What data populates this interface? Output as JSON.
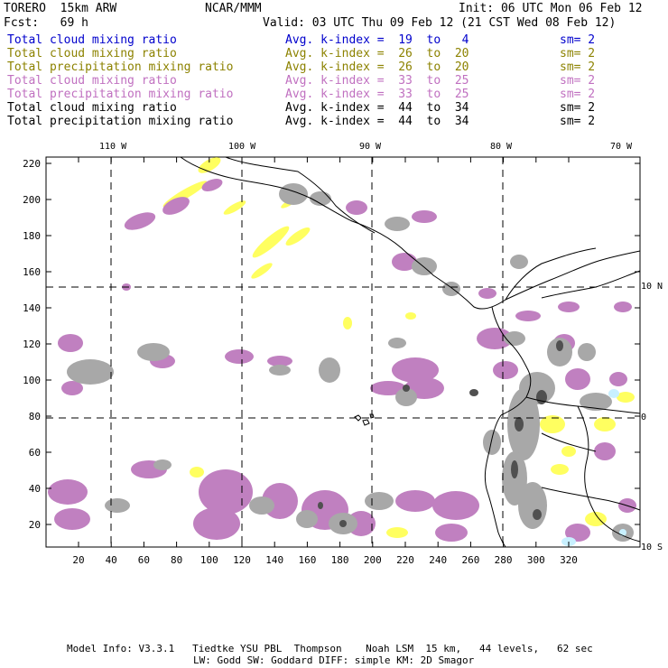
{
  "header": {
    "model": "TORERO  15km ARW",
    "org": "NCAR/MMM",
    "init": "Init: 06 UTC Mon 06 Feb 12",
    "fcst": "Fcst:   69 h",
    "valid": "Valid: 03 UTC Thu 09 Feb 12 (21 CST Wed 08 Feb 12)"
  },
  "legend": [
    {
      "field": "Total cloud mixing ratio",
      "range": "Avg. k-index =  19  to   4",
      "sm": "sm= 2",
      "color": "#0000cc"
    },
    {
      "field": "Total cloud mixing ratio",
      "range": "Avg. k-index =  26  to  20",
      "sm": "sm= 2",
      "color": "#8c8200"
    },
    {
      "field": "Total precipitation mixing ratio",
      "range": "Avg. k-index =  26  to  20",
      "sm": "sm= 2",
      "color": "#8c8200"
    },
    {
      "field": "Total cloud mixing ratio",
      "range": "Avg. k-index =  33  to  25",
      "sm": "sm= 2",
      "color": "#c070c0"
    },
    {
      "field": "Total precipitation mixing ratio",
      "range": "Avg. k-index =  33  to  25",
      "sm": "sm= 2",
      "color": "#c070c0"
    },
    {
      "field": "Total cloud mixing ratio",
      "range": "Avg. k-index =  44  to  34",
      "sm": "sm= 2",
      "color": "#000000"
    },
    {
      "field": "Total precipitation mixing ratio",
      "range": "Avg. k-index =  44  to  34",
      "sm": "sm= 2",
      "color": "#000000"
    }
  ],
  "map": {
    "lon_labels": [
      "110 W",
      "100 W",
      "90 W",
      "80 W",
      "70 W"
    ],
    "lat_labels": [
      "10 N",
      "0",
      "10 S"
    ],
    "y_ticks": [
      "220",
      "200",
      "180",
      "160",
      "140",
      "120",
      "100",
      "80",
      "60",
      "40",
      "20"
    ],
    "x_ticks": [
      "20",
      "40",
      "60",
      "80",
      "100",
      "120",
      "140",
      "160",
      "180",
      "200",
      "220",
      "240",
      "260",
      "280",
      "300",
      "320"
    ],
    "colors": {
      "gray": "#a8a8a8",
      "dark": "#505050",
      "purple": "#c080c0",
      "yellow": "#ffff60",
      "cyan": "#c8f0ff"
    }
  },
  "footer": {
    "line1": "Model Info: V3.3.1   Tiedtke YSU PBL  Thompson    Noah LSM  15 km,   44 levels,   62 sec",
    "line2": "LW: Godd SW: Goddard DIFF: simple KM: 2D Smagor"
  }
}
